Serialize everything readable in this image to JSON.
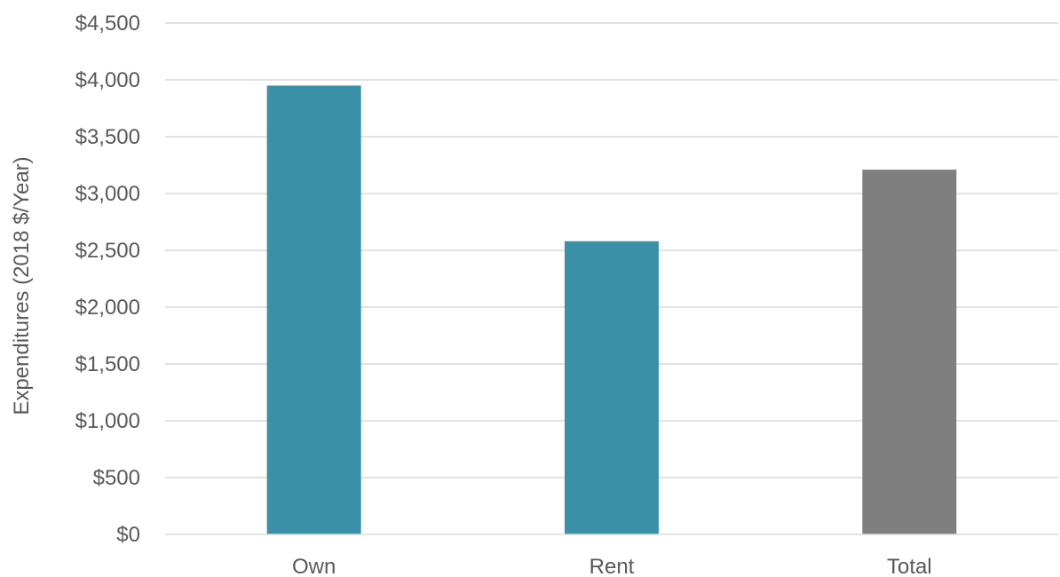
{
  "chart_data": {
    "type": "bar",
    "title": "",
    "xlabel": "",
    "ylabel": "Expenditures (2018 $/Year)",
    "categories": [
      "Own",
      "Rent",
      "Total"
    ],
    "values": [
      3950,
      2580,
      3210
    ],
    "bar_colors": [
      "#3a91a7",
      "#3a91a7",
      "#7f7f7f"
    ],
    "ylim": [
      0,
      4500
    ],
    "yticks": [
      0,
      500,
      1000,
      1500,
      2000,
      2500,
      3000,
      3500,
      4000,
      4500
    ],
    "ytick_labels": [
      "$0",
      "$500",
      "$1,000",
      "$1,500",
      "$2,000",
      "$2,500",
      "$3,000",
      "$3,500",
      "$4,000",
      "$4,500"
    ],
    "grid": true,
    "legend": "none"
  }
}
